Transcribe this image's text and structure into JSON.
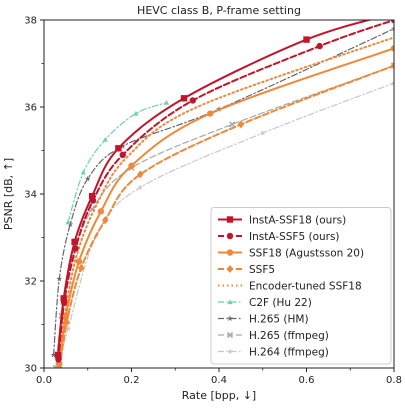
{
  "chart_data": {
    "type": "line",
    "title": "HEVC class B, P-frame setting",
    "xlabel": "Rate [bpp, ↓]",
    "ylabel": "PSNR [dB, ↑]",
    "xlim": [
      0,
      0.8
    ],
    "ylim": [
      30,
      38
    ],
    "xticks": [
      "0.0",
      "0.2",
      "0.4",
      "0.6",
      "0.8"
    ],
    "yticks": [
      "30",
      "32",
      "34",
      "36",
      "38"
    ],
    "grid": false,
    "legend_position": "lower-right",
    "series": [
      {
        "name": "InstA-SSF18 (ours)",
        "color": "#c0152a",
        "dash": "solid",
        "marker": "square",
        "width": 2,
        "x": [
          0.032,
          0.045,
          0.07,
          0.11,
          0.17,
          0.32,
          0.6,
          0.8
        ],
        "y": [
          30.3,
          31.6,
          32.9,
          33.95,
          35.05,
          36.2,
          37.55,
          38.15
        ]
      },
      {
        "name": "InstA-SSF5 (ours)",
        "color": "#c0152a",
        "dash": "dashed",
        "marker": "circle",
        "width": 2,
        "x": [
          0.033,
          0.046,
          0.072,
          0.112,
          0.18,
          0.34,
          0.63,
          0.8
        ],
        "y": [
          30.2,
          31.5,
          32.75,
          33.85,
          34.9,
          36.15,
          37.4,
          38.0
        ]
      },
      {
        "name": "SSF18 (Agustsson 20)",
        "color": "#f0883a",
        "dash": "solid",
        "marker": "circle",
        "width": 2,
        "x": [
          0.035,
          0.05,
          0.08,
          0.13,
          0.2,
          0.38,
          0.8
        ],
        "y": [
          30.1,
          31.2,
          32.45,
          33.6,
          34.65,
          35.85,
          37.35
        ]
      },
      {
        "name": "SSF5",
        "color": "#f0883a",
        "dash": "dashed",
        "marker": "diamond",
        "width": 2,
        "x": [
          0.036,
          0.052,
          0.085,
          0.14,
          0.22,
          0.45,
          0.8
        ],
        "y": [
          30.0,
          31.05,
          32.3,
          33.4,
          34.45,
          35.6,
          36.95
        ]
      },
      {
        "name": "Encoder-tuned SSF18",
        "color": "#f0883a",
        "dash": "dotted",
        "marker": "none",
        "width": 2,
        "x": [
          0.034,
          0.05,
          0.075,
          0.12,
          0.19,
          0.35,
          0.8
        ],
        "y": [
          30.2,
          31.35,
          32.6,
          33.75,
          34.85,
          36.0,
          37.6
        ]
      },
      {
        "name": "C2F (Hu 22)",
        "color": "#6cd4a8",
        "dash": "dashdot",
        "marker": "triangle",
        "width": 1.2,
        "x": [
          0.055,
          0.09,
          0.14,
          0.21,
          0.28
        ],
        "y": [
          33.35,
          34.5,
          35.25,
          35.85,
          36.1
        ]
      },
      {
        "name": "H.265 (HM)",
        "color": "#666666",
        "dash": "dashdot",
        "marker": "star",
        "width": 1.2,
        "x": [
          0.022,
          0.035,
          0.06,
          0.1,
          0.18,
          0.4,
          0.8
        ],
        "y": [
          30.3,
          32.05,
          33.3,
          34.35,
          35.1,
          35.95,
          37.8
        ]
      },
      {
        "name": "H.265 (ffmpeg)",
        "color": "#a8a8a8",
        "dash": "dashed",
        "marker": "x",
        "width": 1.2,
        "x": [
          0.027,
          0.04,
          0.065,
          0.11,
          0.2,
          0.43,
          0.8
        ],
        "y": [
          30.0,
          31.2,
          32.5,
          33.65,
          34.6,
          35.6,
          36.95
        ]
      },
      {
        "name": "H.264 (ffmpeg)",
        "color": "#c8c8c8",
        "dash": "dashdot",
        "marker": "star",
        "width": 1.2,
        "x": [
          0.03,
          0.055,
          0.12,
          0.22,
          0.5,
          0.8
        ],
        "y": [
          30.0,
          30.9,
          33.05,
          34.15,
          35.4,
          36.55
        ]
      }
    ]
  }
}
